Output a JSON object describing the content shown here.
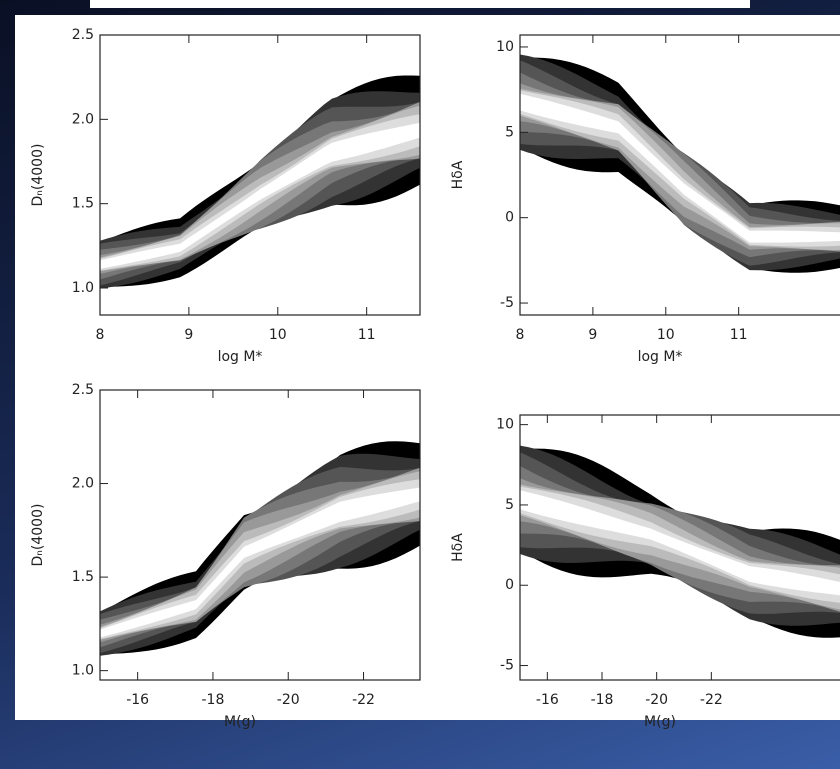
{
  "chart_data": [
    {
      "type": "contour",
      "x_label": "log M*",
      "y_label": "Dₙ(4000)",
      "xlim": [
        8,
        11.6
      ],
      "ylim": [
        0.84,
        2.5
      ],
      "xticks": [
        8,
        9,
        10,
        11
      ],
      "yticks": [
        {
          "value": 1.0,
          "label": "1.0"
        },
        1.5,
        {
          "value": 2.0,
          "label": "2.0"
        },
        2.5
      ]
    },
    {
      "type": "contour",
      "x_label": "log M*",
      "y_label": "HδA",
      "xlim": [
        8,
        12.5
      ],
      "ylim": [
        -5.7,
        10.7
      ],
      "xticks": [
        8,
        9,
        10,
        11
      ],
      "yticks": [
        -5,
        0,
        5,
        10
      ]
    },
    {
      "type": "contour",
      "x_label": "M(g)",
      "y_label": "Dₙ(4000)",
      "xlim": [
        -15,
        -23.5
      ],
      "ylim": [
        0.95,
        2.5
      ],
      "xticks": [
        -16,
        -18,
        -20,
        -22
      ],
      "yticks": [
        {
          "value": 1.0,
          "label": "1.0"
        },
        1.5,
        {
          "value": 2.0,
          "label": "2.0"
        },
        2.5
      ]
    },
    {
      "type": "contour",
      "x_label": "M(g)",
      "y_label": "HδA",
      "xlim": [
        -15,
        -27
      ],
      "ylim": [
        -5.9,
        10.6
      ],
      "xticks": [
        -16,
        -18,
        -20,
        -22
      ],
      "yticks": [
        -5,
        0,
        5,
        10
      ]
    }
  ]
}
